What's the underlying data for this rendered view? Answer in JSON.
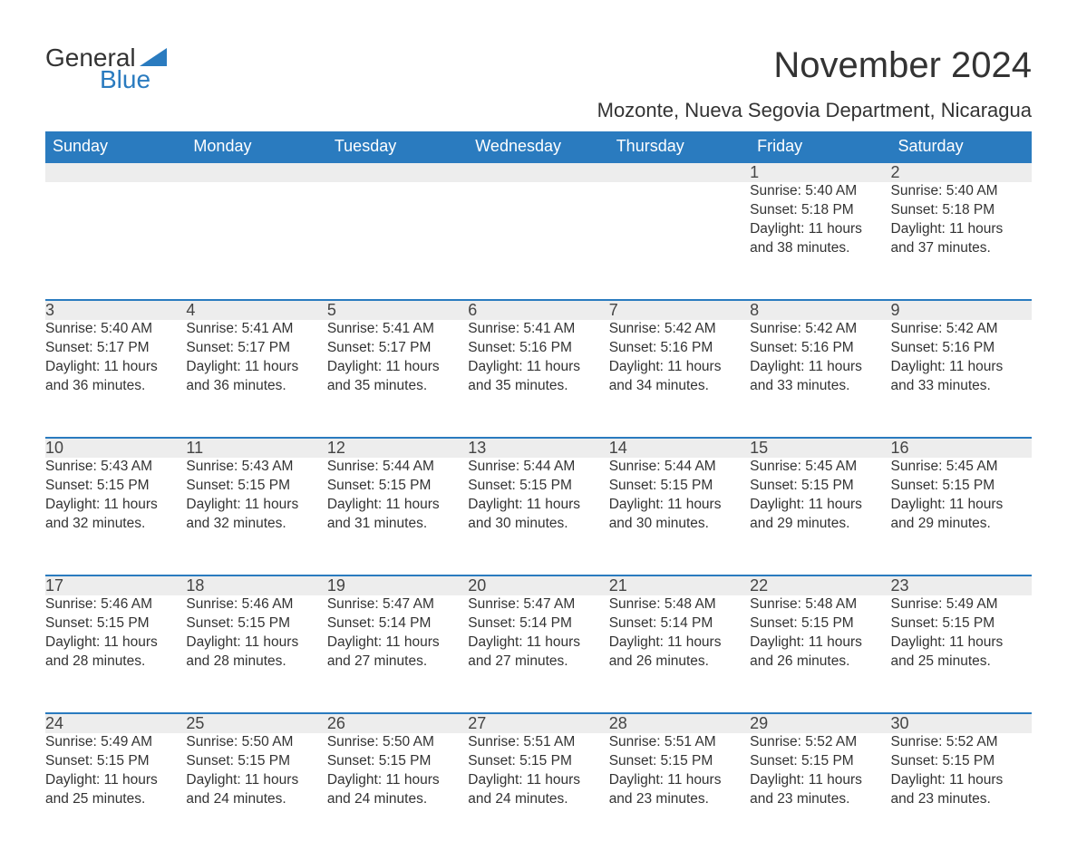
{
  "logo": {
    "general": "General",
    "blue": "Blue"
  },
  "title": "November 2024",
  "location": "Mozonte, Nueva Segovia Department, Nicaragua",
  "colors": {
    "brand_blue": "#2a7bbf",
    "daynum_bg": "#ededed",
    "text": "#333333",
    "background": "#ffffff"
  },
  "day_headers": [
    "Sunday",
    "Monday",
    "Tuesday",
    "Wednesday",
    "Thursday",
    "Friday",
    "Saturday"
  ],
  "weeks": [
    [
      null,
      null,
      null,
      null,
      null,
      {
        "day": "1",
        "sunrise": "Sunrise: 5:40 AM",
        "sunset": "Sunset: 5:18 PM",
        "daylight1": "Daylight: 11 hours",
        "daylight2": "and 38 minutes."
      },
      {
        "day": "2",
        "sunrise": "Sunrise: 5:40 AM",
        "sunset": "Sunset: 5:18 PM",
        "daylight1": "Daylight: 11 hours",
        "daylight2": "and 37 minutes."
      }
    ],
    [
      {
        "day": "3",
        "sunrise": "Sunrise: 5:40 AM",
        "sunset": "Sunset: 5:17 PM",
        "daylight1": "Daylight: 11 hours",
        "daylight2": "and 36 minutes."
      },
      {
        "day": "4",
        "sunrise": "Sunrise: 5:41 AM",
        "sunset": "Sunset: 5:17 PM",
        "daylight1": "Daylight: 11 hours",
        "daylight2": "and 36 minutes."
      },
      {
        "day": "5",
        "sunrise": "Sunrise: 5:41 AM",
        "sunset": "Sunset: 5:17 PM",
        "daylight1": "Daylight: 11 hours",
        "daylight2": "and 35 minutes."
      },
      {
        "day": "6",
        "sunrise": "Sunrise: 5:41 AM",
        "sunset": "Sunset: 5:16 PM",
        "daylight1": "Daylight: 11 hours",
        "daylight2": "and 35 minutes."
      },
      {
        "day": "7",
        "sunrise": "Sunrise: 5:42 AM",
        "sunset": "Sunset: 5:16 PM",
        "daylight1": "Daylight: 11 hours",
        "daylight2": "and 34 minutes."
      },
      {
        "day": "8",
        "sunrise": "Sunrise: 5:42 AM",
        "sunset": "Sunset: 5:16 PM",
        "daylight1": "Daylight: 11 hours",
        "daylight2": "and 33 minutes."
      },
      {
        "day": "9",
        "sunrise": "Sunrise: 5:42 AM",
        "sunset": "Sunset: 5:16 PM",
        "daylight1": "Daylight: 11 hours",
        "daylight2": "and 33 minutes."
      }
    ],
    [
      {
        "day": "10",
        "sunrise": "Sunrise: 5:43 AM",
        "sunset": "Sunset: 5:15 PM",
        "daylight1": "Daylight: 11 hours",
        "daylight2": "and 32 minutes."
      },
      {
        "day": "11",
        "sunrise": "Sunrise: 5:43 AM",
        "sunset": "Sunset: 5:15 PM",
        "daylight1": "Daylight: 11 hours",
        "daylight2": "and 32 minutes."
      },
      {
        "day": "12",
        "sunrise": "Sunrise: 5:44 AM",
        "sunset": "Sunset: 5:15 PM",
        "daylight1": "Daylight: 11 hours",
        "daylight2": "and 31 minutes."
      },
      {
        "day": "13",
        "sunrise": "Sunrise: 5:44 AM",
        "sunset": "Sunset: 5:15 PM",
        "daylight1": "Daylight: 11 hours",
        "daylight2": "and 30 minutes."
      },
      {
        "day": "14",
        "sunrise": "Sunrise: 5:44 AM",
        "sunset": "Sunset: 5:15 PM",
        "daylight1": "Daylight: 11 hours",
        "daylight2": "and 30 minutes."
      },
      {
        "day": "15",
        "sunrise": "Sunrise: 5:45 AM",
        "sunset": "Sunset: 5:15 PM",
        "daylight1": "Daylight: 11 hours",
        "daylight2": "and 29 minutes."
      },
      {
        "day": "16",
        "sunrise": "Sunrise: 5:45 AM",
        "sunset": "Sunset: 5:15 PM",
        "daylight1": "Daylight: 11 hours",
        "daylight2": "and 29 minutes."
      }
    ],
    [
      {
        "day": "17",
        "sunrise": "Sunrise: 5:46 AM",
        "sunset": "Sunset: 5:15 PM",
        "daylight1": "Daylight: 11 hours",
        "daylight2": "and 28 minutes."
      },
      {
        "day": "18",
        "sunrise": "Sunrise: 5:46 AM",
        "sunset": "Sunset: 5:15 PM",
        "daylight1": "Daylight: 11 hours",
        "daylight2": "and 28 minutes."
      },
      {
        "day": "19",
        "sunrise": "Sunrise: 5:47 AM",
        "sunset": "Sunset: 5:14 PM",
        "daylight1": "Daylight: 11 hours",
        "daylight2": "and 27 minutes."
      },
      {
        "day": "20",
        "sunrise": "Sunrise: 5:47 AM",
        "sunset": "Sunset: 5:14 PM",
        "daylight1": "Daylight: 11 hours",
        "daylight2": "and 27 minutes."
      },
      {
        "day": "21",
        "sunrise": "Sunrise: 5:48 AM",
        "sunset": "Sunset: 5:14 PM",
        "daylight1": "Daylight: 11 hours",
        "daylight2": "and 26 minutes."
      },
      {
        "day": "22",
        "sunrise": "Sunrise: 5:48 AM",
        "sunset": "Sunset: 5:15 PM",
        "daylight1": "Daylight: 11 hours",
        "daylight2": "and 26 minutes."
      },
      {
        "day": "23",
        "sunrise": "Sunrise: 5:49 AM",
        "sunset": "Sunset: 5:15 PM",
        "daylight1": "Daylight: 11 hours",
        "daylight2": "and 25 minutes."
      }
    ],
    [
      {
        "day": "24",
        "sunrise": "Sunrise: 5:49 AM",
        "sunset": "Sunset: 5:15 PM",
        "daylight1": "Daylight: 11 hours",
        "daylight2": "and 25 minutes."
      },
      {
        "day": "25",
        "sunrise": "Sunrise: 5:50 AM",
        "sunset": "Sunset: 5:15 PM",
        "daylight1": "Daylight: 11 hours",
        "daylight2": "and 24 minutes."
      },
      {
        "day": "26",
        "sunrise": "Sunrise: 5:50 AM",
        "sunset": "Sunset: 5:15 PM",
        "daylight1": "Daylight: 11 hours",
        "daylight2": "and 24 minutes."
      },
      {
        "day": "27",
        "sunrise": "Sunrise: 5:51 AM",
        "sunset": "Sunset: 5:15 PM",
        "daylight1": "Daylight: 11 hours",
        "daylight2": "and 24 minutes."
      },
      {
        "day": "28",
        "sunrise": "Sunrise: 5:51 AM",
        "sunset": "Sunset: 5:15 PM",
        "daylight1": "Daylight: 11 hours",
        "daylight2": "and 23 minutes."
      },
      {
        "day": "29",
        "sunrise": "Sunrise: 5:52 AM",
        "sunset": "Sunset: 5:15 PM",
        "daylight1": "Daylight: 11 hours",
        "daylight2": "and 23 minutes."
      },
      {
        "day": "30",
        "sunrise": "Sunrise: 5:52 AM",
        "sunset": "Sunset: 5:15 PM",
        "daylight1": "Daylight: 11 hours",
        "daylight2": "and 23 minutes."
      }
    ]
  ]
}
